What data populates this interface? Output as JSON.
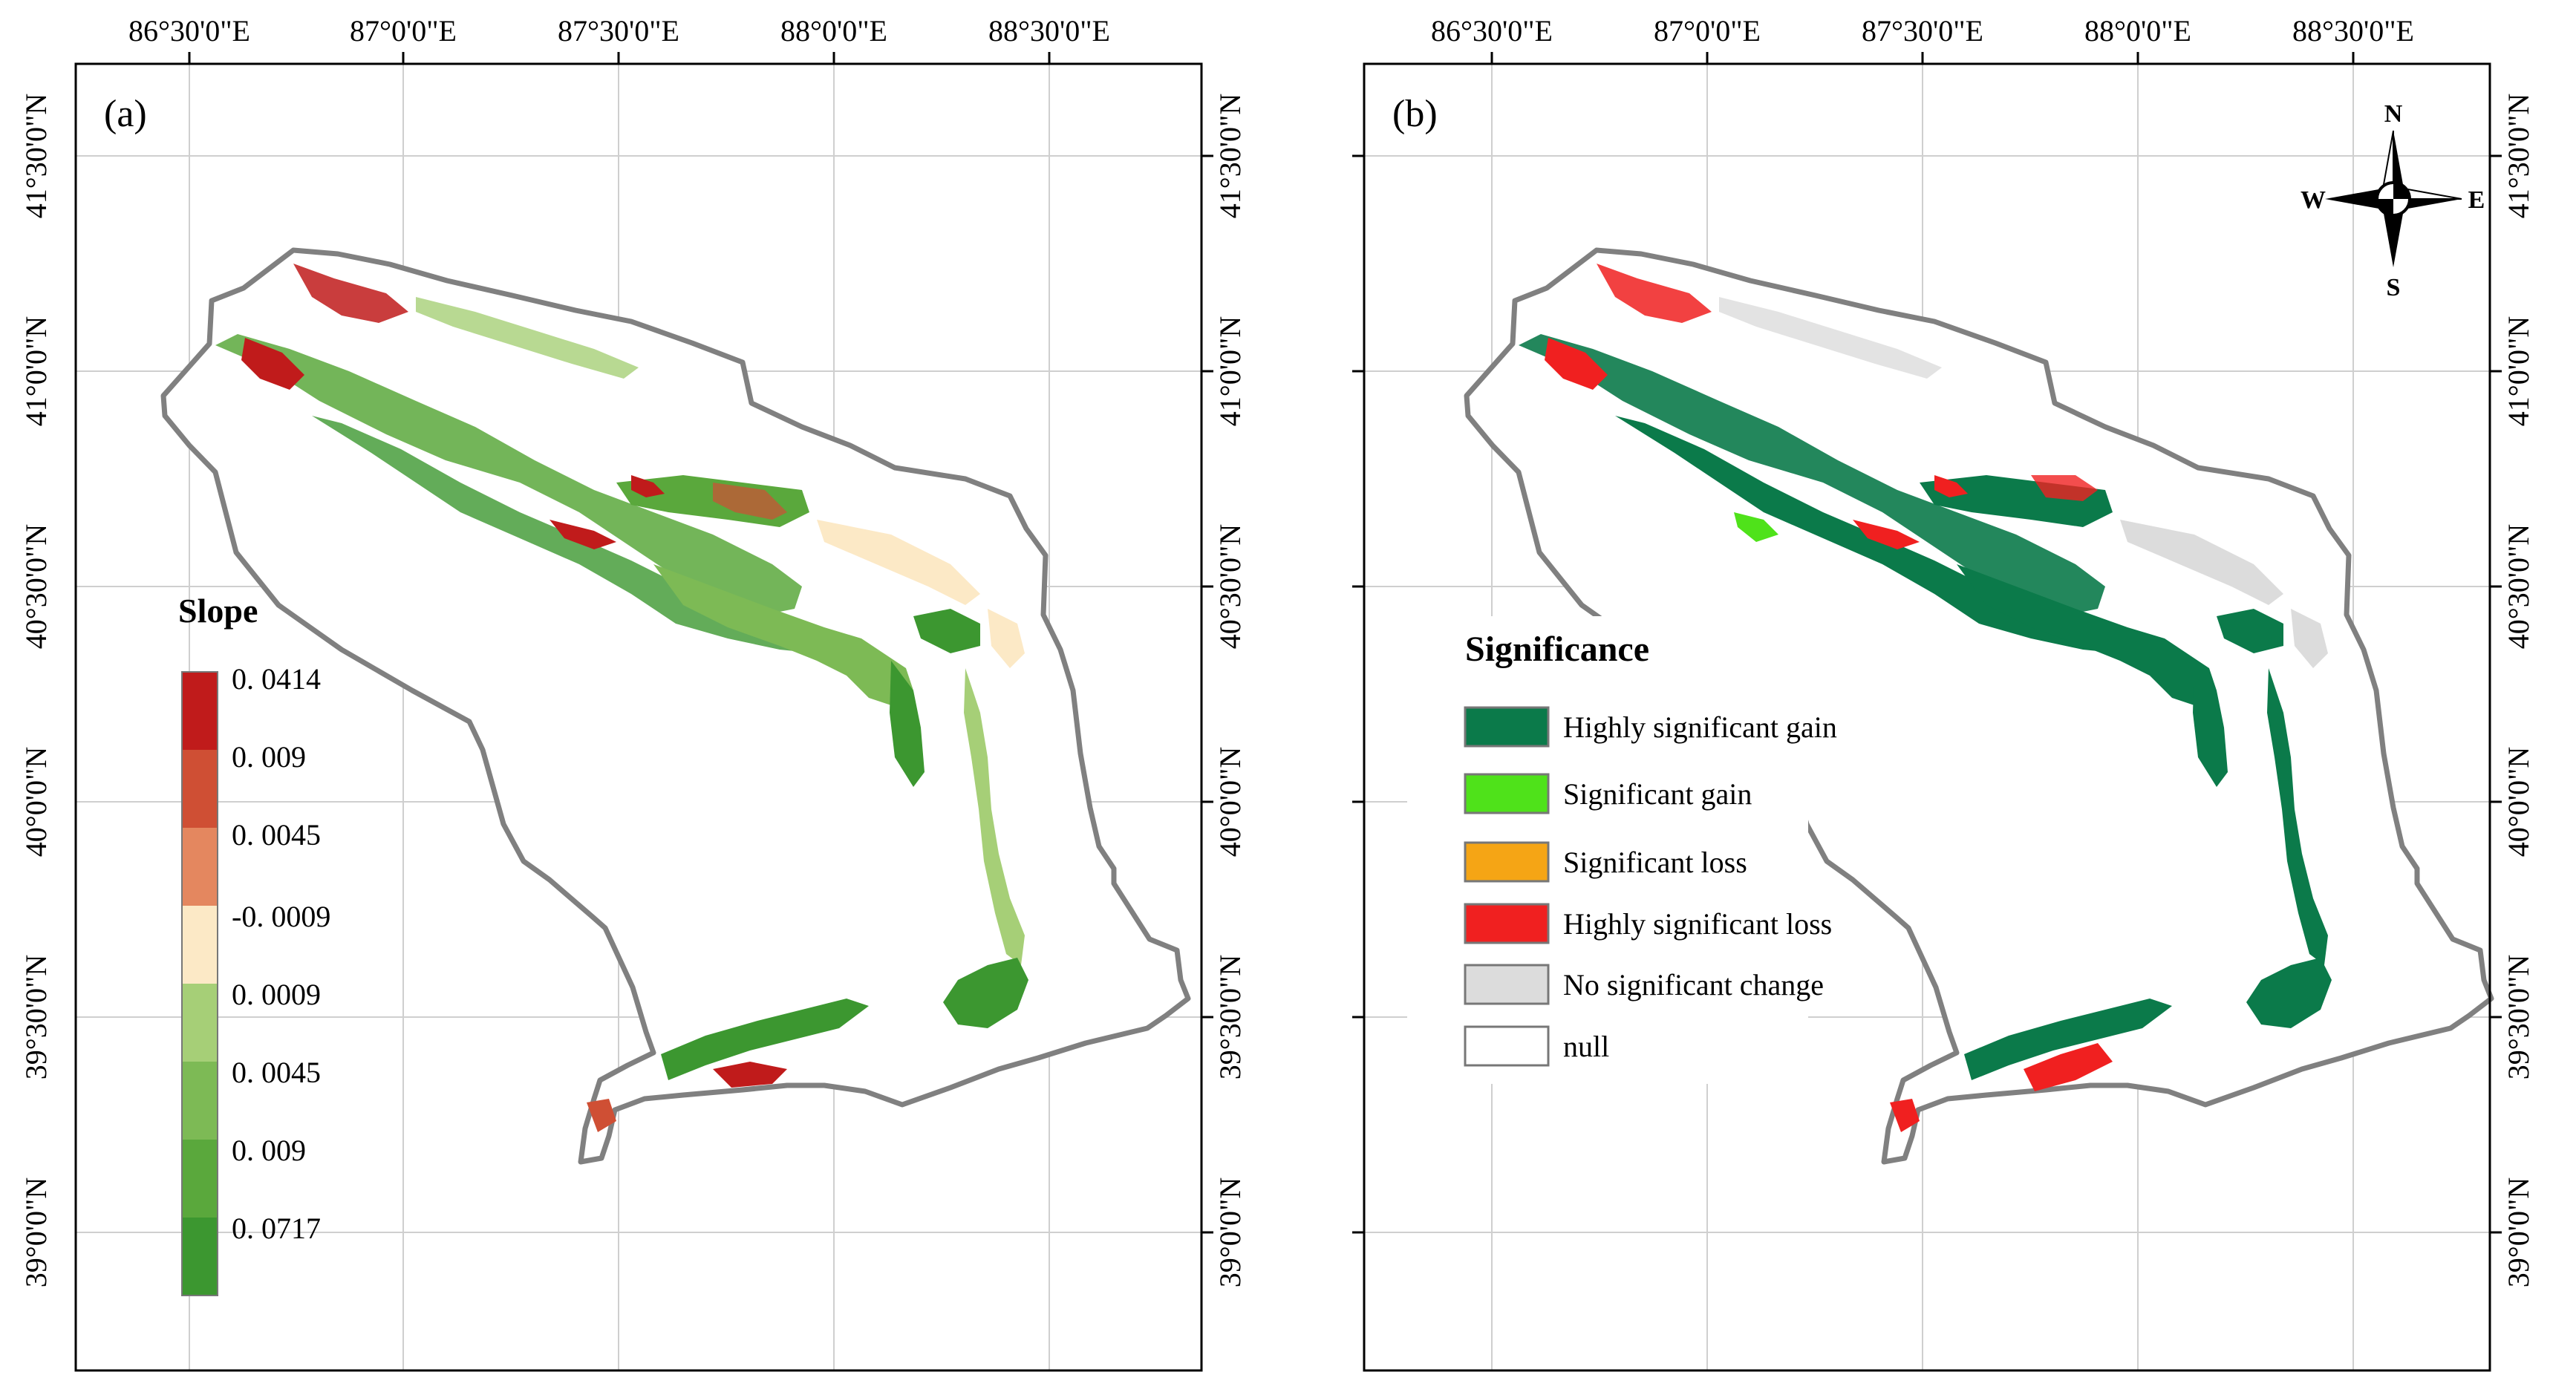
{
  "panels": [
    {
      "id": "a",
      "label": "(a)",
      "legend_title": "Slope",
      "legend_labels": [
        "0. 0414",
        "0. 009",
        "0. 0045",
        "-0. 0009",
        "0. 0009",
        "0. 0045",
        "0. 009",
        "0. 0717"
      ],
      "legend_colors": [
        "#c01b1b",
        "#cf4f34",
        "#e4875f",
        "#fce9c6",
        "#a6cf77",
        "#7dba55",
        "#5aa83c",
        "#3c9730"
      ]
    },
    {
      "id": "b",
      "label": "(b)",
      "legend_title": "Significance",
      "legend_items": [
        {
          "label": "Highly significant gain",
          "color": "#0b7a4a"
        },
        {
          "label": "Significant gain",
          "color": "#4fe21a"
        },
        {
          "label": "Significant loss",
          "color": "#f5a515"
        },
        {
          "label": "Highly significant loss",
          "color": "#f02020"
        },
        {
          "label": "No significant change",
          "color": "#dcdcdc"
        },
        {
          "label": "null",
          "color": "#ffffff"
        }
      ],
      "north_arrow": {
        "n": "N",
        "s": "S",
        "e": "E",
        "w": "W"
      }
    }
  ],
  "longitude_labels": [
    "86°30'0\"E",
    "87°0'0\"E",
    "87°30'0\"E",
    "88°0'0\"E",
    "88°30'0\"E"
  ],
  "latitude_labels": [
    "41°30'0\"N",
    "41°0'0\"N",
    "40°30'0\"N",
    "40°0'0\"N",
    "39°30'0\"N",
    "39°0'0\"N"
  ]
}
